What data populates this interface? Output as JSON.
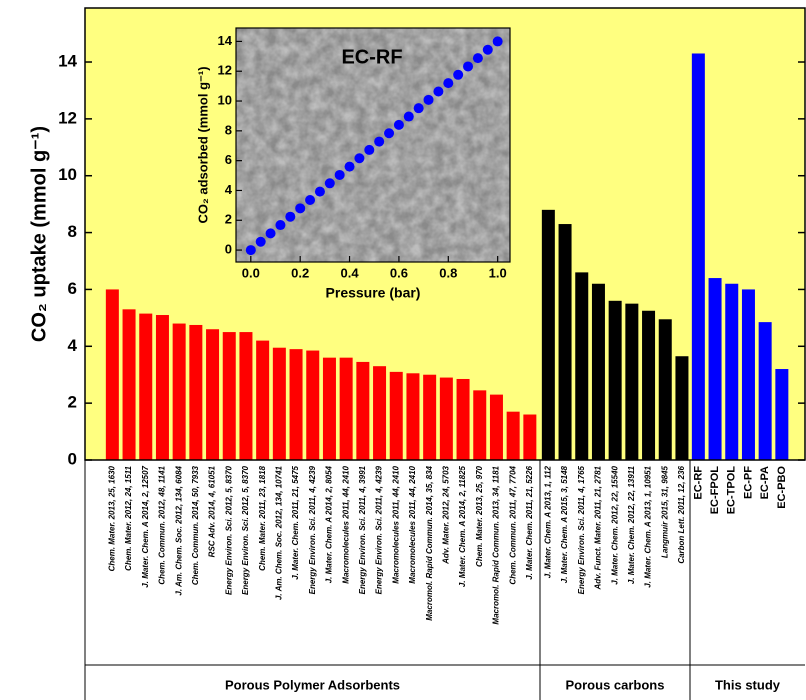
{
  "chart_data": [
    {
      "type": "bar",
      "y_label": "CO₂ uptake (mmol g⁻¹)",
      "ylim": [
        0,
        15.9
      ],
      "yticks": [
        0,
        2,
        4,
        6,
        8,
        10,
        12,
        14
      ],
      "background": "#ffff80",
      "groups": [
        {
          "name": "Porous Polymer Adsorbents",
          "color": "#ff0000",
          "categories": [
            "Chem. Mater. 2013, 25, 1630",
            "Chem. Mater. 2012, 24, 1511",
            "J. Mater. Chem. A 2014, 2, 12507",
            "Chem. Commun. 2012, 48, 1141",
            "J. Am. Chem. Soc. 2012, 134, 6084",
            "Chem. Commun. 2014, 50, 7933",
            "RSC Adv. 2014, 4, 61051",
            "Energy Environ. Sci. 2012, 5, 8370",
            "Energy Environ. Sci. 2012, 5, 8370",
            "Chem. Mater. 2011, 23, 1818",
            "J. Am. Chem. Soc. 2012, 134, 10741",
            "J. Mater. Chem. 2011, 21, 5475",
            "Energy Environ. Sci. 2011, 4, 4239",
            "J. Mater. Chem. A 2014, 2, 8054",
            "Macromolecules 2011, 44, 2410",
            "Energy Environ. Sci. 2011, 4, 3991",
            "Energy Environ. Sci. 2011, 4, 4239",
            "Macromolecules 2011, 44, 2410",
            "Macromolecules 2011, 44, 2410",
            "Macromol. Rapid Commun. 2014, 35, 834",
            "Adv. Mater. 2012, 24, 5703",
            "J. Mater. Chem. A 2014, 2, 11825",
            "Chem. Mater. 2013, 25, 970",
            "Macromol. Rapid Commun. 2013, 34, 1181",
            "Chem. Commun. 2011, 47, 7704",
            "J. Mater. Chem. 2011, 21, 5226"
          ],
          "values": [
            6.0,
            5.3,
            5.15,
            5.1,
            4.8,
            4.75,
            4.6,
            4.5,
            4.5,
            4.2,
            3.95,
            3.9,
            3.85,
            3.6,
            3.6,
            3.45,
            3.3,
            3.1,
            3.05,
            3.0,
            2.9,
            2.85,
            2.45,
            2.3,
            1.7,
            1.6
          ]
        },
        {
          "name": "Porous carbons",
          "color": "#000000",
          "categories": [
            "J. Mater. Chem. A 2013, 1, 112",
            "J. Mater. Chem. A 2015, 3, 5148",
            "Energy Environ. Sci. 2011, 4, 1765",
            "Adv. Funct. Mater. 2011, 21, 2781",
            "J. Mater. Chem. 2012, 22, 15540",
            "J. Mater. Chem. 2012, 22, 13911",
            "J. Mater. Chem. A 2013, 1, 10951",
            "Langmuir 2015, 31, 9845",
            "Carbon Lett. 2011, 12, 236"
          ],
          "values": [
            8.8,
            8.3,
            6.6,
            6.2,
            5.6,
            5.5,
            5.25,
            4.95,
            3.65
          ]
        },
        {
          "name": "This study",
          "color": "#0000ff",
          "categories": [
            "EC-RF",
            "EC-FPOL",
            "EC-TPOL",
            "EC-PF",
            "EC-PA",
            "EC-PBO"
          ],
          "values": [
            14.3,
            6.4,
            6.2,
            6.0,
            4.85,
            3.2
          ]
        }
      ]
    },
    {
      "type": "scatter",
      "annotation": "EC-RF",
      "x_label": "Pressure (bar)",
      "y_label": "CO₂ adsorbed (mmol g⁻¹)",
      "color": "#0000ff",
      "xlim": [
        -0.06,
        1.05
      ],
      "ylim": [
        -0.8,
        14.9
      ],
      "xticks": [
        {
          "value": 0,
          "label": "0.0"
        },
        0.2,
        0.4,
        0.6,
        0.8,
        {
          "value": 1,
          "label": "1.0"
        }
      ],
      "yticks": [
        0,
        2,
        4,
        6,
        8,
        10,
        12,
        14
      ],
      "x": [
        0,
        0.04,
        0.08,
        0.12,
        0.16,
        0.2,
        0.24,
        0.28,
        0.32,
        0.36,
        0.4,
        0.44,
        0.48,
        0.52,
        0.56,
        0.6,
        0.64,
        0.68,
        0.72,
        0.76,
        0.8,
        0.84,
        0.88,
        0.92,
        0.96,
        1.0
      ],
      "values": [
        0,
        0.56,
        1.12,
        1.68,
        2.24,
        2.8,
        3.36,
        3.92,
        4.48,
        5.04,
        5.6,
        6.16,
        6.72,
        7.28,
        7.84,
        8.4,
        8.96,
        9.52,
        10.08,
        10.64,
        11.2,
        11.76,
        12.32,
        12.88,
        13.44,
        14.0
      ]
    }
  ]
}
